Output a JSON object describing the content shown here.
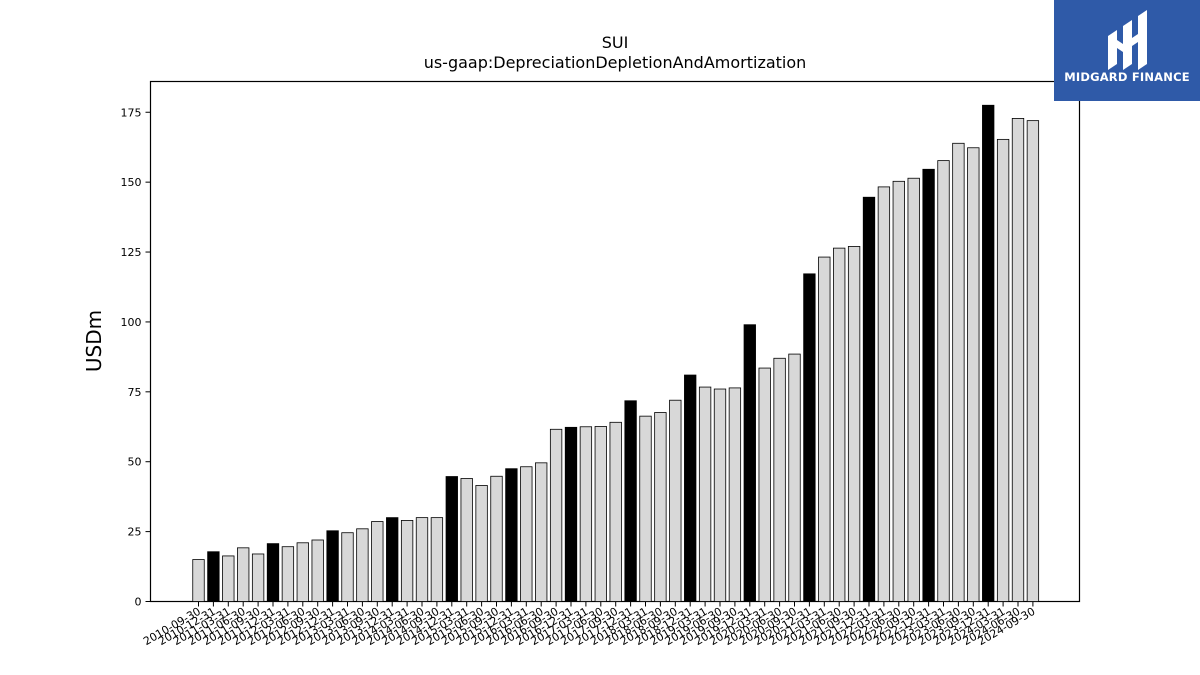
{
  "chart_data": {
    "type": "bar",
    "title": "SUI",
    "subtitle": "us-gaap:DepreciationDepletionAndAmortization",
    "xlabel": "",
    "ylabel": "USDm",
    "ylim": [
      0,
      186
    ],
    "yticks": [
      0,
      25,
      50,
      75,
      100,
      125,
      150,
      175
    ],
    "grid": false,
    "categories": [
      "2010-09-30",
      "2010-12-31",
      "2011-03-31",
      "2011-06-30",
      "2011-09-30",
      "2011-12-31",
      "2012-03-31",
      "2012-06-30",
      "2012-09-30",
      "2012-12-31",
      "2013-03-31",
      "2013-06-30",
      "2013-09-30",
      "2013-12-31",
      "2014-03-31",
      "2014-06-30",
      "2014-09-30",
      "2014-12-31",
      "2015-03-31",
      "2015-06-30",
      "2015-09-30",
      "2015-12-31",
      "2016-03-31",
      "2016-06-30",
      "2016-09-30",
      "2016-12-31",
      "2017-03-31",
      "2017-06-30",
      "2017-09-30",
      "2017-12-31",
      "2018-03-31",
      "2018-06-30",
      "2018-09-30",
      "2018-12-31",
      "2019-03-31",
      "2019-06-30",
      "2019-09-30",
      "2019-12-31",
      "2020-03-31",
      "2020-06-30",
      "2020-09-30",
      "2020-12-31",
      "2021-03-31",
      "2021-06-30",
      "2021-09-30",
      "2021-12-31",
      "2022-03-31",
      "2022-06-30",
      "2022-09-30",
      "2022-12-31",
      "2023-03-31",
      "2023-06-30",
      "2023-09-30",
      "2023-12-31",
      "2024-03-31",
      "2024-06-30",
      "2024-09-30"
    ],
    "values": [
      15,
      17.8,
      16.3,
      19.2,
      17,
      20.7,
      19.6,
      21,
      22,
      25.3,
      24.6,
      26,
      28.6,
      30,
      29,
      30,
      30,
      44.7,
      44,
      41.5,
      44.8,
      47.5,
      48.2,
      49.6,
      61.6,
      62.3,
      62.5,
      62.6,
      64.1,
      71.8,
      66.3,
      67.6,
      72,
      81,
      76.7,
      76,
      76.4,
      99,
      83.5,
      87,
      88.5,
      117.2,
      123.2,
      126.4,
      127,
      144.6,
      148.3,
      150.3,
      151.4,
      154.6,
      157.7,
      163.9,
      162.3,
      177.5,
      165.3,
      172.8,
      172
    ],
    "highlight_categories": [
      "2010-12-31",
      "2011-12-31",
      "2012-12-31",
      "2013-12-31",
      "2014-12-31",
      "2015-12-31",
      "2016-12-31",
      "2017-12-31",
      "2018-12-31",
      "2019-12-31",
      "2020-12-31",
      "2021-12-31",
      "2022-12-31",
      "2023-12-31"
    ],
    "colors": {
      "bar": "#d8d8d8",
      "highlight": "#000000",
      "edge": "#000000"
    }
  },
  "logo": {
    "text": "MIDGARD FINANCE",
    "background": "#2f5aa8"
  }
}
